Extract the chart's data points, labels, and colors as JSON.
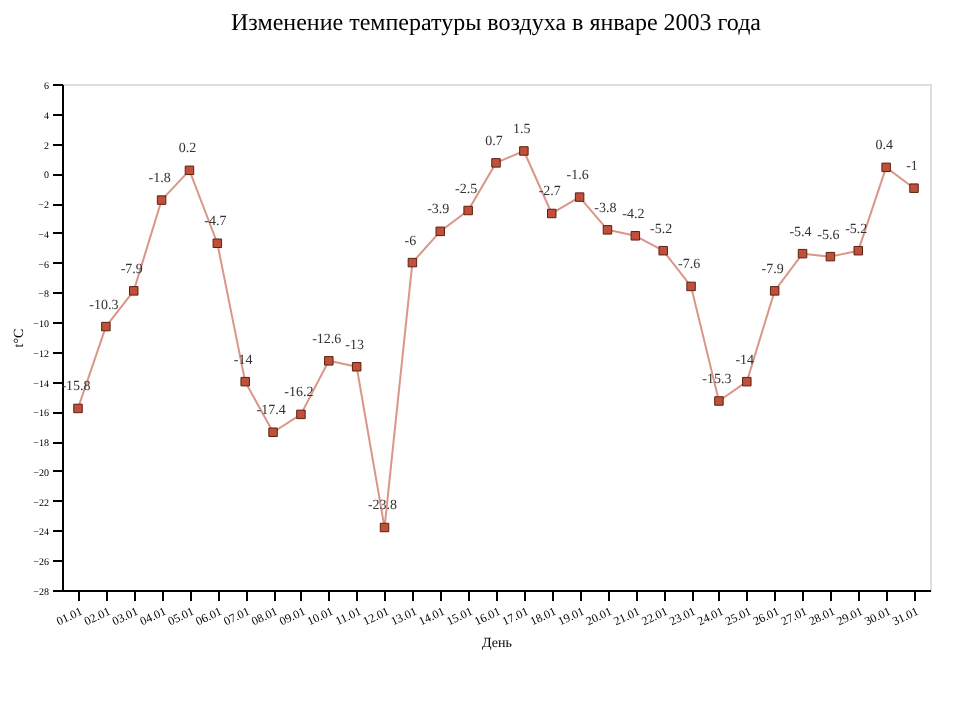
{
  "chart_data": {
    "type": "line",
    "title": "Изменение температуры воздуха в январе 2003 года",
    "xlabel": "День",
    "ylabel": "t°C",
    "categories": [
      "01.01",
      "02.01",
      "03.01",
      "04.01",
      "05.01",
      "06.01",
      "07.01",
      "08.01",
      "09.01",
      "10.01",
      "11.01",
      "12.01",
      "13.01",
      "14.01",
      "15.01",
      "16.01",
      "17.01",
      "18.01",
      "19.01",
      "20.01",
      "21.01",
      "22.01",
      "23.01",
      "24.01",
      "25.01",
      "26.01",
      "27.01",
      "28.01",
      "29.01",
      "30.01",
      "31.01"
    ],
    "series": [
      {
        "color": "#c0503a",
        "values": [
          -15.8,
          -10.3,
          -7.9,
          -1.8,
          0.2,
          -4.7,
          -14,
          -17.4,
          -16.2,
          -12.6,
          -13,
          -23.8,
          -6,
          -3.9,
          -2.5,
          0.7,
          1.5,
          -2.7,
          -1.6,
          -3.8,
          -4.2,
          -5.2,
          -7.6,
          -15.3,
          -14,
          -7.9,
          -5.4,
          -5.6,
          -5.2,
          0.4,
          -1
        ]
      }
    ],
    "ylim": [
      -28,
      6
    ],
    "yticks": [
      -28,
      -26,
      -24,
      -22,
      -20,
      -18,
      -16,
      -14,
      -12,
      -10,
      -8,
      -6,
      -4,
      -2,
      0,
      2,
      4,
      6
    ],
    "grid": false,
    "marker": "square",
    "line_style": "solid",
    "data_labels": true,
    "legend": false
  }
}
